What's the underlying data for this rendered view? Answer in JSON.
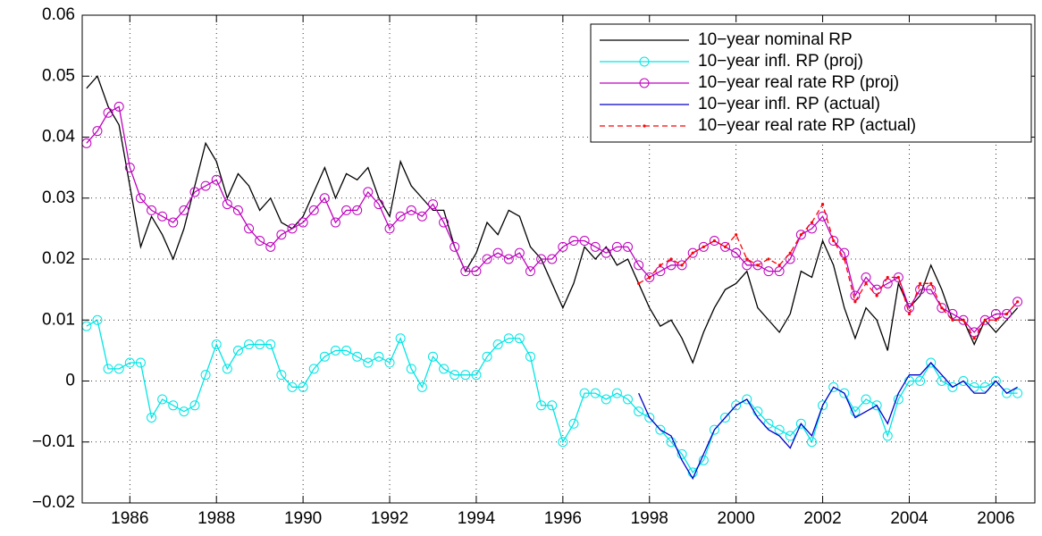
{
  "chart_data": {
    "type": "line",
    "x": [
      1985,
      1985.25,
      1985.5,
      1985.75,
      1986,
      1986.25,
      1986.5,
      1986.75,
      1987,
      1987.25,
      1987.5,
      1987.75,
      1988,
      1988.25,
      1988.5,
      1988.75,
      1989,
      1989.25,
      1989.5,
      1989.75,
      1990,
      1990.25,
      1990.5,
      1990.75,
      1991,
      1991.25,
      1991.5,
      1991.75,
      1992,
      1992.25,
      1992.5,
      1992.75,
      1993,
      1993.25,
      1993.5,
      1993.75,
      1994,
      1994.25,
      1994.5,
      1994.75,
      1995,
      1995.25,
      1995.5,
      1995.75,
      1996,
      1996.25,
      1996.5,
      1996.75,
      1997,
      1997.25,
      1997.5,
      1997.75,
      1998,
      1998.25,
      1998.5,
      1998.75,
      1999,
      1999.25,
      1999.5,
      1999.75,
      2000,
      2000.25,
      2000.5,
      2000.75,
      2001,
      2001.25,
      2001.5,
      2001.75,
      2002,
      2002.25,
      2002.5,
      2002.75,
      2003,
      2003.25,
      2003.5,
      2003.75,
      2004,
      2004.25,
      2004.5,
      2004.75,
      2005,
      2005.25,
      2005.5,
      2005.75,
      2006,
      2006.25,
      2006.5
    ],
    "series": [
      {
        "name": "10−year nominal RP",
        "color": "#000000",
        "marker": null,
        "dashed": false,
        "values": [
          0.048,
          0.05,
          0.045,
          0.042,
          0.032,
          0.022,
          0.027,
          0.024,
          0.02,
          0.025,
          0.032,
          0.039,
          0.036,
          0.03,
          0.034,
          0.032,
          0.028,
          0.03,
          0.026,
          0.025,
          0.027,
          0.031,
          0.035,
          0.03,
          0.034,
          0.033,
          0.035,
          0.03,
          0.027,
          0.036,
          0.032,
          0.03,
          0.028,
          0.028,
          0.022,
          0.018,
          0.021,
          0.026,
          0.024,
          0.028,
          0.027,
          0.022,
          0.02,
          0.016,
          0.012,
          0.016,
          0.022,
          0.02,
          0.022,
          0.019,
          0.02,
          0.016,
          0.012,
          0.009,
          0.01,
          0.007,
          0.003,
          0.008,
          0.012,
          0.015,
          0.016,
          0.018,
          0.012,
          0.01,
          0.008,
          0.011,
          0.018,
          0.017,
          0.023,
          0.019,
          0.012,
          0.007,
          0.012,
          0.01,
          0.005,
          0.016,
          0.012,
          0.014,
          0.019,
          0.015,
          0.01,
          0.01,
          0.006,
          0.01,
          0.008,
          0.01,
          0.012
        ]
      },
      {
        "name": "10−year infl. RP (proj)",
        "color": "#00e5e5",
        "marker": "circle",
        "dashed": false,
        "values": [
          0.009,
          0.01,
          0.002,
          0.002,
          0.003,
          0.003,
          -0.006,
          -0.003,
          -0.004,
          -0.005,
          -0.004,
          0.001,
          0.006,
          0.002,
          0.005,
          0.006,
          0.006,
          0.006,
          0.001,
          -0.001,
          -0.001,
          0.002,
          0.004,
          0.005,
          0.005,
          0.004,
          0.003,
          0.004,
          0.003,
          0.007,
          0.002,
          -0.001,
          0.004,
          0.002,
          0.001,
          0.001,
          0.001,
          0.004,
          0.006,
          0.007,
          0.007,
          0.004,
          -0.004,
          -0.004,
          -0.01,
          -0.007,
          -0.002,
          -0.002,
          -0.003,
          -0.002,
          -0.003,
          -0.005,
          -0.006,
          -0.008,
          -0.01,
          -0.012,
          -0.015,
          -0.013,
          -0.008,
          -0.006,
          -0.004,
          -0.003,
          -0.005,
          -0.007,
          -0.008,
          -0.009,
          -0.007,
          -0.01,
          -0.004,
          -0.001,
          -0.002,
          -0.005,
          -0.003,
          -0.004,
          -0.009,
          -0.003,
          0.0,
          0.0,
          0.003,
          0.0,
          -0.001,
          0.0,
          -0.001,
          -0.001,
          0.0,
          -0.002,
          -0.002
        ]
      },
      {
        "name": "10−year real rate RP (proj)",
        "color": "#bf00bf",
        "marker": "circle",
        "dashed": false,
        "values": [
          0.039,
          0.041,
          0.044,
          0.045,
          0.035,
          0.03,
          0.028,
          0.027,
          0.026,
          0.028,
          0.031,
          0.032,
          0.033,
          0.029,
          0.028,
          0.025,
          0.023,
          0.022,
          0.024,
          0.025,
          0.026,
          0.028,
          0.03,
          0.026,
          0.028,
          0.028,
          0.031,
          0.029,
          0.025,
          0.027,
          0.028,
          0.027,
          0.029,
          0.026,
          0.022,
          0.018,
          0.018,
          0.02,
          0.021,
          0.02,
          0.021,
          0.018,
          0.02,
          0.02,
          0.022,
          0.023,
          0.023,
          0.022,
          0.021,
          0.022,
          0.022,
          0.019,
          0.017,
          0.018,
          0.019,
          0.019,
          0.021,
          0.022,
          0.023,
          0.022,
          0.021,
          0.019,
          0.019,
          0.018,
          0.018,
          0.02,
          0.024,
          0.025,
          0.027,
          0.023,
          0.021,
          0.014,
          0.017,
          0.015,
          0.016,
          0.017,
          0.012,
          0.015,
          0.015,
          0.012,
          0.011,
          0.01,
          0.008,
          0.01,
          0.011,
          0.011,
          0.013
        ]
      },
      {
        "name": "10−year infl. RP (actual)",
        "color": "#0000cc",
        "marker": null,
        "dashed": false,
        "values": [
          null,
          null,
          null,
          null,
          null,
          null,
          null,
          null,
          null,
          null,
          null,
          null,
          null,
          null,
          null,
          null,
          null,
          null,
          null,
          null,
          null,
          null,
          null,
          null,
          null,
          null,
          null,
          null,
          null,
          null,
          null,
          null,
          null,
          null,
          null,
          null,
          null,
          null,
          null,
          null,
          null,
          null,
          null,
          null,
          null,
          null,
          null,
          null,
          null,
          null,
          null,
          -0.002,
          -0.006,
          -0.008,
          -0.009,
          -0.013,
          -0.016,
          -0.012,
          -0.008,
          -0.006,
          -0.004,
          -0.003,
          -0.006,
          -0.008,
          -0.009,
          -0.011,
          -0.007,
          -0.009,
          -0.004,
          -0.001,
          -0.002,
          -0.006,
          -0.005,
          -0.004,
          -0.007,
          -0.002,
          0.001,
          0.001,
          0.003,
          0.001,
          -0.001,
          0.0,
          -0.002,
          -0.002,
          0.0,
          -0.002,
          -0.001
        ]
      },
      {
        "name": "10−year real rate RP (actual)",
        "color": "#ff0000",
        "marker": "dot",
        "dashed": true,
        "values": [
          null,
          null,
          null,
          null,
          null,
          null,
          null,
          null,
          null,
          null,
          null,
          null,
          null,
          null,
          null,
          null,
          null,
          null,
          null,
          null,
          null,
          null,
          null,
          null,
          null,
          null,
          null,
          null,
          null,
          null,
          null,
          null,
          null,
          null,
          null,
          null,
          null,
          null,
          null,
          null,
          null,
          null,
          null,
          null,
          null,
          null,
          null,
          null,
          null,
          null,
          null,
          0.016,
          0.017,
          0.019,
          0.02,
          0.019,
          0.021,
          0.022,
          0.023,
          0.022,
          0.024,
          0.02,
          0.019,
          0.02,
          0.019,
          0.021,
          0.024,
          0.026,
          0.029,
          0.023,
          0.02,
          0.013,
          0.016,
          0.014,
          0.017,
          0.017,
          0.011,
          0.016,
          0.016,
          0.012,
          0.01,
          0.01,
          0.007,
          0.01,
          0.01,
          0.011,
          0.013
        ]
      }
    ],
    "xlim": [
      1984.9,
      2006.9
    ],
    "xticks": [
      1986,
      1988,
      1990,
      1992,
      1994,
      1996,
      1998,
      2000,
      2002,
      2004,
      2006
    ],
    "ylim": [
      -0.02,
      0.06
    ],
    "yticks": [
      {
        "value": -0.02,
        "label": "−0.02"
      },
      {
        "value": -0.01,
        "label": "−0.01"
      },
      0,
      0.01,
      0.02,
      0.03,
      0.04,
      0.05,
      0.06
    ],
    "grid": true,
    "legend": "upper right"
  }
}
